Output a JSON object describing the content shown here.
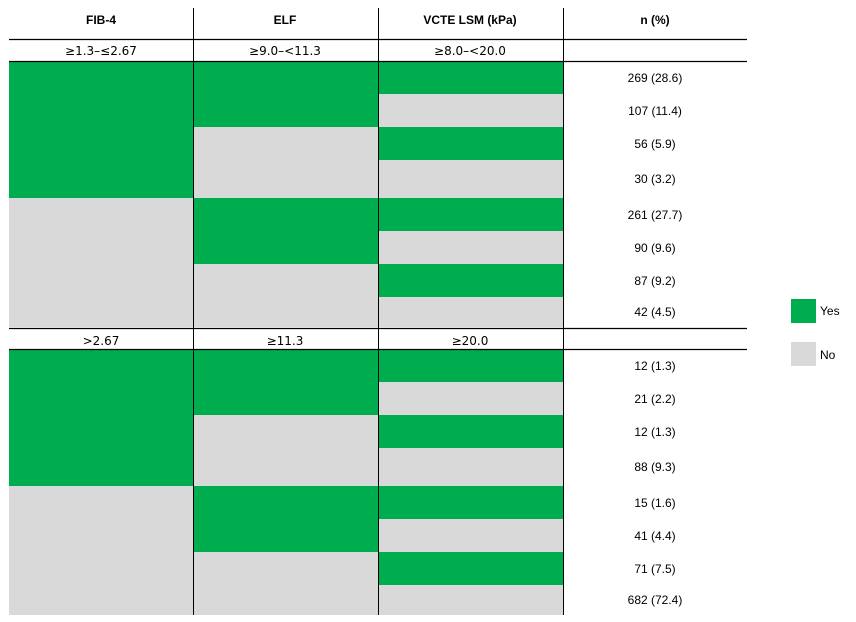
{
  "colors": {
    "yes": "#00ad4e",
    "no": "#d9d9d9"
  },
  "headers": [
    "FIB-4",
    "ELF",
    "VCTE LSM (kPa)",
    "n (%)"
  ],
  "legend": [
    {
      "label": "Yes",
      "color": "#00ad4e"
    },
    {
      "label": "No",
      "color": "#d9d9d9"
    }
  ],
  "chart_data": {
    "type": "table",
    "columns": [
      "FIB-4",
      "ELF",
      "VCTE LSM (kPa)",
      "n (%)"
    ],
    "blocks": [
      {
        "thresholds": [
          "≥1.3–≤2.67",
          "≥9.0–<11.3",
          "≥8.0–<20.0"
        ],
        "rows": [
          {
            "fib4": "Yes",
            "elf": "Yes",
            "vcte": "Yes",
            "n": "269 (28.6)"
          },
          {
            "fib4": "Yes",
            "elf": "Yes",
            "vcte": "No",
            "n": "107 (11.4)"
          },
          {
            "fib4": "Yes",
            "elf": "No",
            "vcte": "Yes",
            "n": "56 (5.9)"
          },
          {
            "fib4": "Yes",
            "elf": "No",
            "vcte": "No",
            "n": "30 (3.2)"
          },
          {
            "fib4": "No",
            "elf": "Yes",
            "vcte": "Yes",
            "n": "261 (27.7)"
          },
          {
            "fib4": "No",
            "elf": "Yes",
            "vcte": "No",
            "n": "90 (9.6)"
          },
          {
            "fib4": "No",
            "elf": "No",
            "vcte": "Yes",
            "n": "87 (9.2)"
          },
          {
            "fib4": "No",
            "elf": "No",
            "vcte": "No",
            "n": "42 (4.5)"
          }
        ]
      },
      {
        "thresholds": [
          ">2.67",
          "≥11.3",
          "≥20.0"
        ],
        "rows": [
          {
            "fib4": "Yes",
            "elf": "Yes",
            "vcte": "Yes",
            "n": "12 (1.3)"
          },
          {
            "fib4": "Yes",
            "elf": "Yes",
            "vcte": "No",
            "n": "21 (2.2)"
          },
          {
            "fib4": "Yes",
            "elf": "No",
            "vcte": "Yes",
            "n": "12 (1.3)"
          },
          {
            "fib4": "Yes",
            "elf": "No",
            "vcte": "No",
            "n": "88 (9.3)"
          },
          {
            "fib4": "No",
            "elf": "Yes",
            "vcte": "Yes",
            "n": "15 (1.6)"
          },
          {
            "fib4": "No",
            "elf": "Yes",
            "vcte": "No",
            "n": "41 (4.4)"
          },
          {
            "fib4": "No",
            "elf": "No",
            "vcte": "Yes",
            "n": "71 (7.5)"
          },
          {
            "fib4": "No",
            "elf": "No",
            "vcte": "No",
            "n": "682 (72.4)"
          }
        ]
      }
    ]
  }
}
